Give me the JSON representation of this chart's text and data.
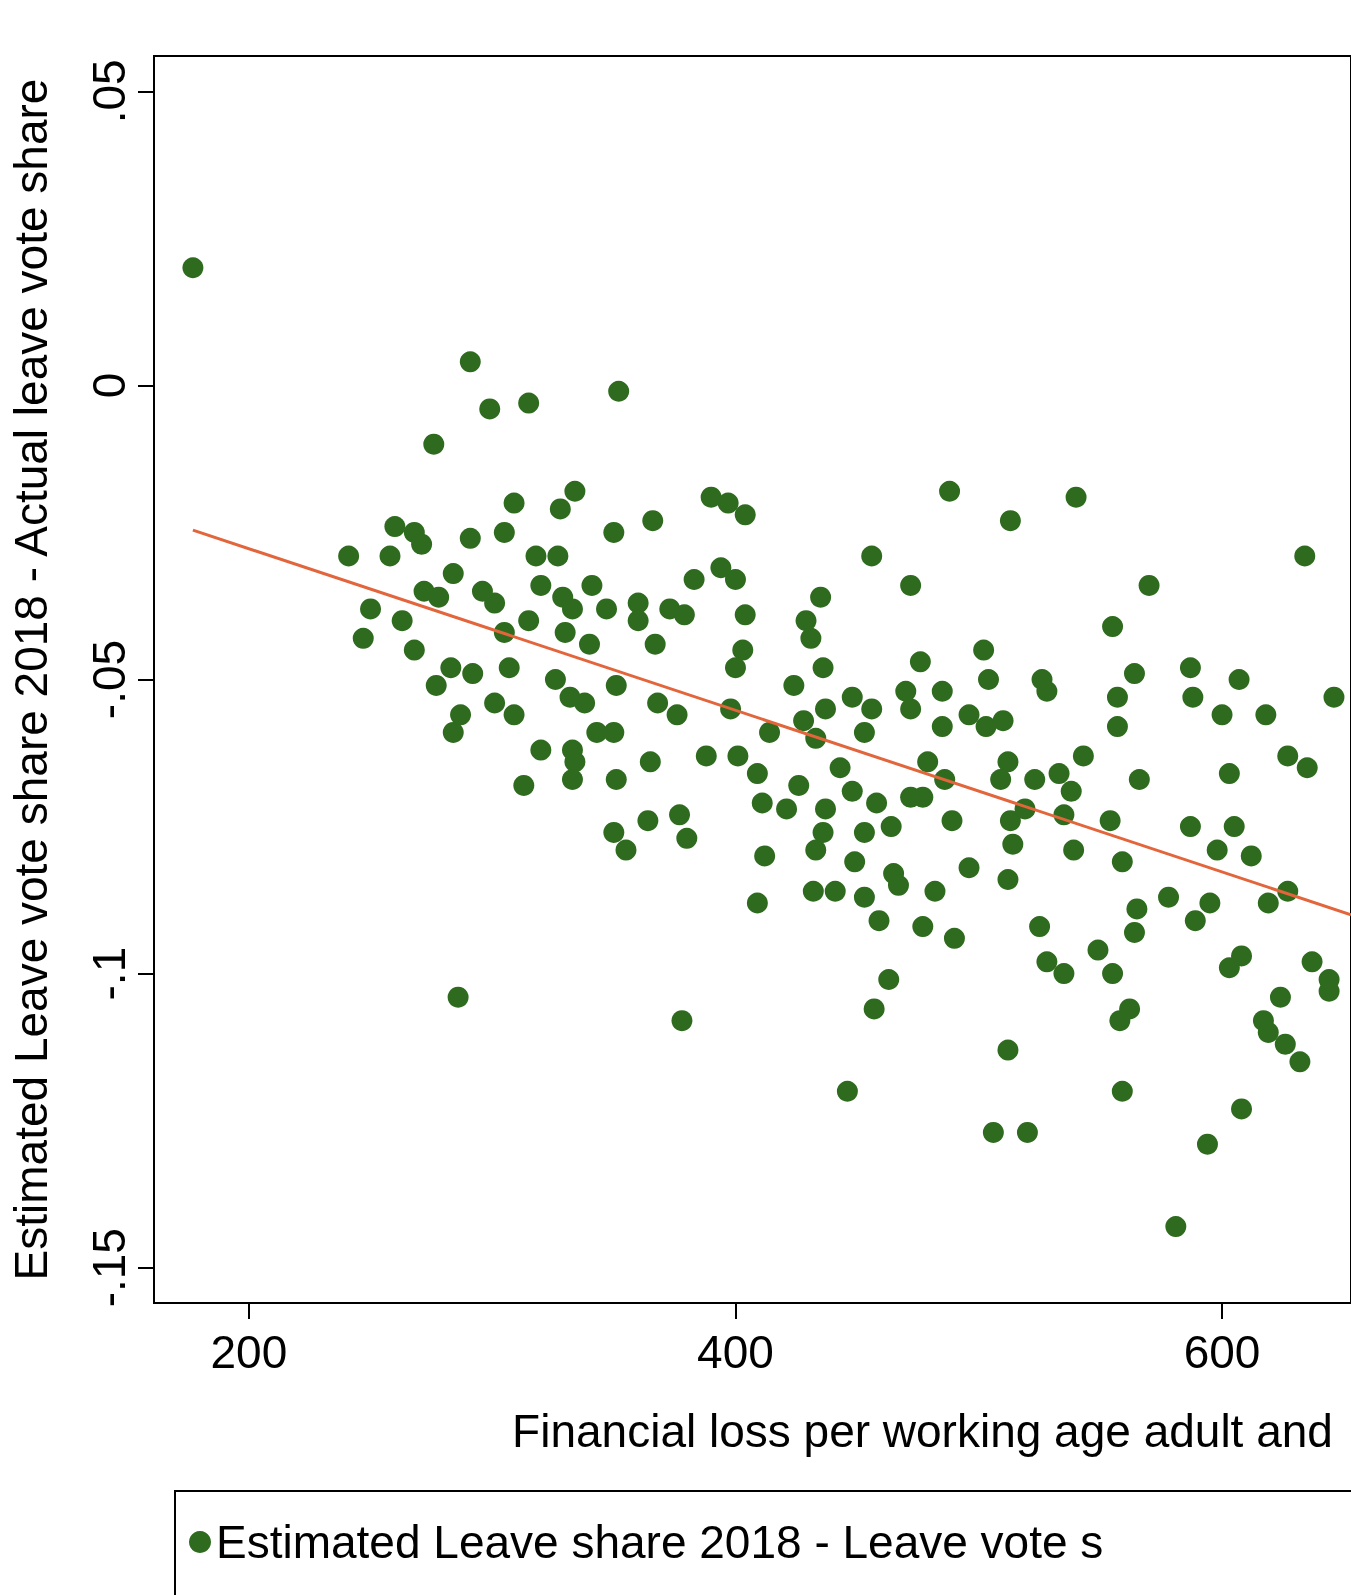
{
  "chart_data": {
    "type": "scatter",
    "xlabel": "Financial loss per working age adult and",
    "ylabel": "Estimated Leave vote share 2018 - Actual leave vote share",
    "xlim": [
      161,
      653
    ],
    "xticks": [
      200,
      400,
      600
    ],
    "ylim": [
      -0.156,
      0.056
    ],
    "yticks": [
      {
        "value": -0.15,
        "label": "-.15"
      },
      {
        "value": -0.1,
        "label": "-.1"
      },
      {
        "value": -0.05,
        "label": "-.05"
      },
      {
        "value": 0,
        "label": "0"
      },
      {
        "value": 0.05,
        "label": ".05"
      }
    ],
    "grid": false,
    "legend": "bottom",
    "marker": "circle",
    "series": [
      {
        "name": "Estimated Leave share 2018 - Leave vote s",
        "color": "#2e6b1e",
        "x": [
          177,
          291,
          299,
          315,
          352,
          276,
          286,
          378,
          446,
          506,
          520,
          581,
          594,
          608,
          512,
          559,
          457,
          463,
          488,
          513,
          540,
          634,
          646,
          456,
          472,
          570,
          241,
          247,
          250,
          258,
          260,
          268,
          271,
          263,
          268,
          277,
          272,
          278,
          284,
          284,
          287,
          283,
          292,
          291,
          296,
          301,
          305,
          309,
          305,
          307,
          301,
          309,
          313,
          315,
          318,
          320,
          320,
          327,
          328,
          334,
          329,
          330,
          333,
          326,
          332,
          333,
          334,
          333,
          340,
          341,
          338,
          343,
          347,
          350,
          351,
          350,
          351,
          350,
          355,
          360,
          360,
          366,
          367,
          364,
          365,
          368,
          373,
          379,
          376,
          377,
          380,
          383,
          388,
          390,
          394,
          397,
          400,
          404,
          404,
          403,
          400,
          398,
          401,
          409,
          409,
          412,
          411,
          414,
          421,
          426,
          428,
          424,
          431,
          435,
          429,
          436,
          437,
          433,
          437,
          436,
          433,
          432,
          441,
          443,
          448,
          448,
          449,
          453,
          456,
          458,
          459,
          453,
          453,
          464,
          465,
          467,
          470,
          472,
          472,
          476,
          477,
          477,
          479,
          482,
          485,
          485,
          486,
          489,
          490,
          496,
          496,
          502,
          503,
          504,
          510,
          512,
          509,
          513,
          514,
          512,
          525,
          526,
          528,
          519,
          523,
          528,
          535,
          533,
          538,
          535,
          539,
          543,
          549,
          554,
          555,
          555,
          557,
          557,
          559,
          558,
          562,
          564,
          564,
          566,
          565,
          578,
          587,
          588,
          587,
          589,
          595,
          598,
          600,
          603,
          605,
          607,
          603,
          608,
          612,
          618,
          619,
          617,
          619,
          624,
          626,
          632,
          627,
          635,
          627,
          637,
          644,
          644
        ],
        "values": [
          0.02,
          0.004,
          -0.004,
          -0.003,
          -0.001,
          -0.01,
          -0.104,
          -0.108,
          -0.12,
          -0.127,
          -0.127,
          -0.143,
          -0.129,
          -0.123,
          -0.113,
          -0.12,
          -0.106,
          -0.101,
          -0.018,
          -0.023,
          -0.019,
          -0.029,
          -0.053,
          -0.029,
          -0.034,
          -0.034,
          -0.029,
          -0.043,
          -0.038,
          -0.029,
          -0.024,
          -0.025,
          -0.027,
          -0.04,
          -0.045,
          -0.051,
          -0.035,
          -0.036,
          -0.032,
          -0.059,
          -0.056,
          -0.048,
          -0.049,
          -0.026,
          -0.035,
          -0.037,
          -0.025,
          -0.02,
          -0.042,
          -0.048,
          -0.054,
          -0.056,
          -0.068,
          -0.04,
          -0.029,
          -0.034,
          -0.062,
          -0.029,
          -0.021,
          -0.018,
          -0.036,
          -0.042,
          -0.038,
          -0.05,
          -0.053,
          -0.062,
          -0.064,
          -0.067,
          -0.044,
          -0.034,
          -0.054,
          -0.059,
          -0.038,
          -0.025,
          -0.051,
          -0.059,
          -0.067,
          -0.076,
          -0.079,
          -0.037,
          -0.04,
          -0.023,
          -0.044,
          -0.074,
          -0.064,
          -0.054,
          -0.038,
          -0.039,
          -0.056,
          -0.073,
          -0.077,
          -0.033,
          -0.063,
          -0.019,
          -0.031,
          -0.02,
          -0.033,
          -0.039,
          -0.022,
          -0.045,
          -0.048,
          -0.055,
          -0.063,
          -0.066,
          -0.088,
          -0.08,
          -0.071,
          -0.059,
          -0.072,
          -0.068,
          -0.057,
          -0.051,
          -0.043,
          -0.036,
          -0.04,
          -0.048,
          -0.055,
          -0.06,
          -0.072,
          -0.076,
          -0.079,
          -0.086,
          -0.086,
          -0.065,
          -0.069,
          -0.053,
          -0.081,
          -0.059,
          -0.055,
          -0.071,
          -0.091,
          -0.076,
          -0.087,
          -0.075,
          -0.083,
          -0.085,
          -0.052,
          -0.055,
          -0.07,
          -0.047,
          -0.07,
          -0.092,
          -0.064,
          -0.086,
          -0.052,
          -0.058,
          -0.067,
          -0.074,
          -0.094,
          -0.056,
          -0.082,
          -0.045,
          -0.058,
          -0.05,
          -0.057,
          -0.064,
          -0.067,
          -0.074,
          -0.078,
          -0.084,
          -0.092,
          -0.05,
          -0.052,
          -0.072,
          -0.067,
          -0.098,
          -0.1,
          -0.066,
          -0.069,
          -0.073,
          -0.079,
          -0.063,
          -0.096,
          -0.074,
          -0.041,
          -0.1,
          -0.058,
          -0.053,
          -0.081,
          -0.108,
          -0.106,
          -0.093,
          -0.049,
          -0.067,
          -0.089,
          -0.087,
          -0.048,
          -0.053,
          -0.075,
          -0.091,
          -0.088,
          -0.079,
          -0.056,
          -0.066,
          -0.075,
          -0.05,
          -0.099,
          -0.097,
          -0.08,
          -0.056,
          -0.088,
          -0.108,
          -0.11,
          -0.104,
          -0.112,
          -0.115,
          -0.063,
          -0.065,
          -0.086,
          -0.098,
          -0.101,
          -0.103
        ]
      },
      {
        "type": "line",
        "color": "#e2653c",
        "marker": "none",
        "line_style": "solid",
        "x": [
          177,
          653
        ],
        "values": [
          -0.0246,
          -0.09
        ]
      }
    ]
  }
}
